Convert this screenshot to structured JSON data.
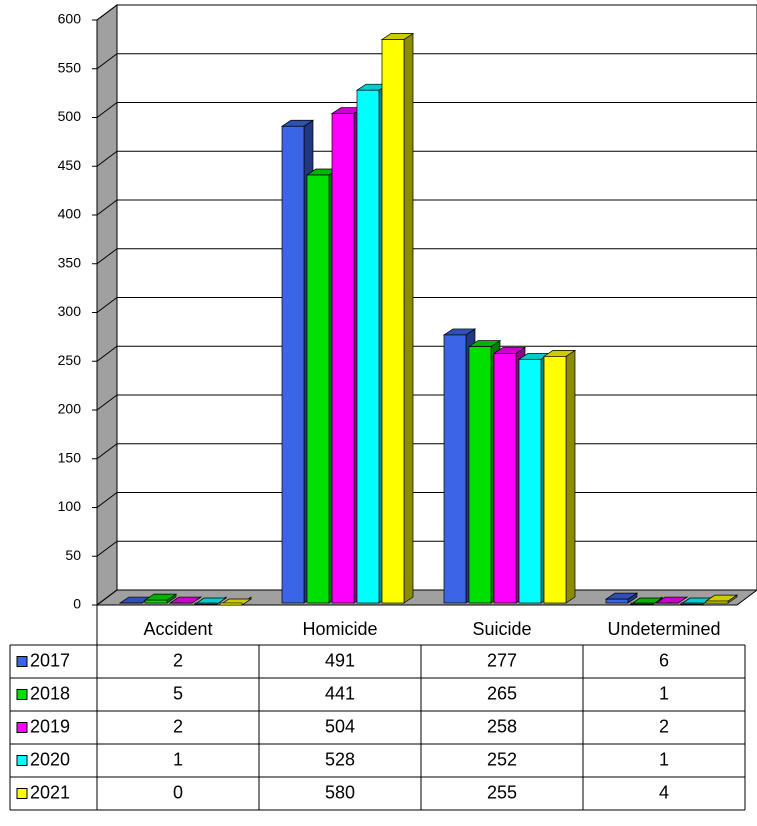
{
  "chart_data": {
    "type": "bar3d",
    "categories": [
      "Accident",
      "Homicide",
      "Suicide",
      "Undetermined"
    ],
    "series": [
      {
        "name": "2017",
        "color": "#3c64e6",
        "values": [
          2,
          491,
          277,
          6
        ]
      },
      {
        "name": "2018",
        "color": "#00e000",
        "values": [
          5,
          441,
          265,
          1
        ]
      },
      {
        "name": "2019",
        "color": "#ff00ff",
        "values": [
          2,
          504,
          258,
          2
        ]
      },
      {
        "name": "2020",
        "color": "#00ffff",
        "values": [
          1,
          528,
          252,
          1
        ]
      },
      {
        "name": "2021",
        "color": "#ffff00",
        "values": [
          0,
          580,
          255,
          4
        ]
      }
    ],
    "ylim": [
      0,
      600
    ],
    "yticks": [
      0,
      50,
      100,
      150,
      200,
      250,
      300,
      350,
      400,
      450,
      500,
      550,
      600
    ],
    "grid": true,
    "data_table": true
  }
}
